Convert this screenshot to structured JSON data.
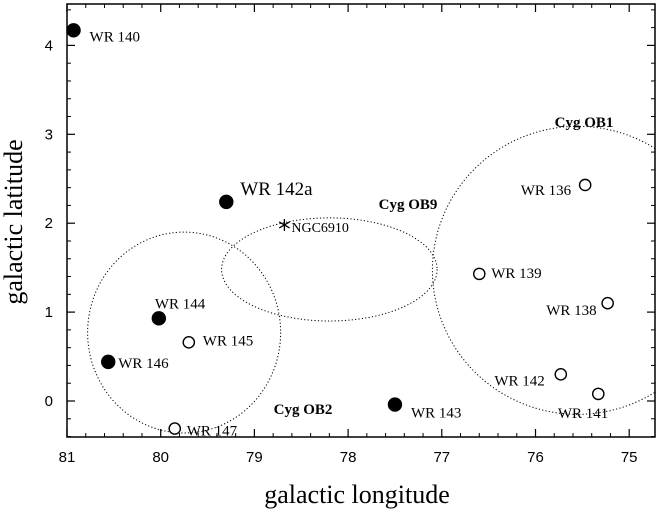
{
  "chart_data": {
    "type": "scatter",
    "xlabel": "galactic longitude",
    "ylabel": "galactic latitude",
    "xlim": [
      81,
      75
    ],
    "ylim": [
      -0.4,
      4.4
    ],
    "x_ticks": [
      "81",
      "80",
      "79",
      "78",
      "77",
      "76",
      "75"
    ],
    "y_ticks": [
      "0",
      "1",
      "2",
      "3",
      "4"
    ],
    "x_tick_values": [
      81,
      80,
      79,
      78,
      77,
      76,
      75
    ],
    "y_tick_values": [
      0,
      1,
      2,
      3,
      4
    ],
    "grid": false,
    "points": [
      {
        "label": "WR 140",
        "x": 80.93,
        "y": 4.17,
        "marker": "filled"
      },
      {
        "label": "WR 142a",
        "x": 79.3,
        "y": 2.24,
        "marker": "filled"
      },
      {
        "label": "WR 144",
        "x": 80.02,
        "y": 0.93,
        "marker": "filled"
      },
      {
        "label": "WR 146",
        "x": 80.56,
        "y": 0.44,
        "marker": "filled"
      },
      {
        "label": "WR 143",
        "x": 77.5,
        "y": -0.04,
        "marker": "filled"
      },
      {
        "label": "WR 145",
        "x": 79.7,
        "y": 0.66,
        "marker": "open"
      },
      {
        "label": "WR 147",
        "x": 79.85,
        "y": -0.31,
        "marker": "open"
      },
      {
        "label": "WR 136",
        "x": 75.47,
        "y": 2.43,
        "marker": "open"
      },
      {
        "label": "WR 139",
        "x": 76.6,
        "y": 1.43,
        "marker": "open"
      },
      {
        "label": "WR 138",
        "x": 75.23,
        "y": 1.1,
        "marker": "open"
      },
      {
        "label": "WR 142",
        "x": 75.73,
        "y": 0.3,
        "marker": "open"
      },
      {
        "label": "WR 141",
        "x": 75.33,
        "y": 0.08,
        "marker": "open"
      }
    ],
    "cluster": {
      "label": "NGC6910",
      "x": 78.68,
      "y": 1.98,
      "marker": "asterisk"
    },
    "associations": [
      {
        "label": "Cyg OB1",
        "center": [
          75.55,
          1.47
        ],
        "radius_x": 1.55,
        "radius_y": 1.62
      },
      {
        "label": "Cyg OB2",
        "center": [
          79.75,
          0.77
        ],
        "radius_x": 1.03,
        "radius_y": 1.13
      },
      {
        "label": "Cyg OB9",
        "center": [
          78.2,
          1.48
        ],
        "radius_x": 1.15,
        "radius_y": 0.58
      }
    ]
  }
}
